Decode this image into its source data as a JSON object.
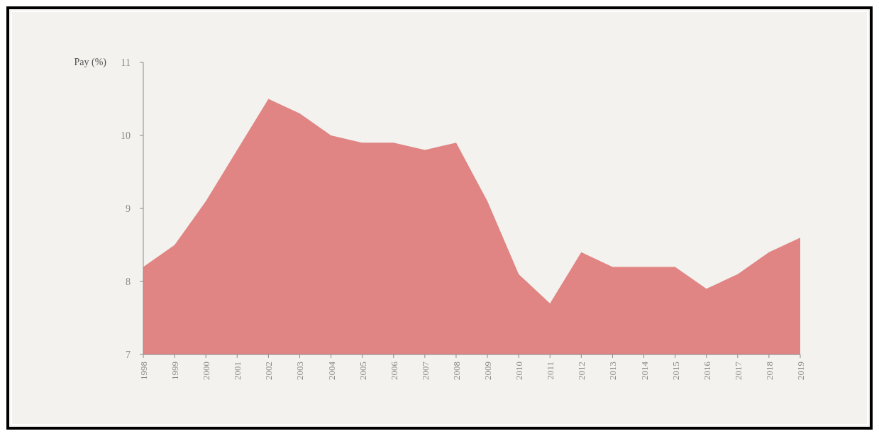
{
  "chart_data": {
    "type": "area",
    "ylabel": "Pay (%)",
    "categories": [
      "1998",
      "1999",
      "2000",
      "2001",
      "2002",
      "2003",
      "2004",
      "2005",
      "2006",
      "2007",
      "2008",
      "2009",
      "2010",
      "2011",
      "2012",
      "2013",
      "2014",
      "2015",
      "2016",
      "2017",
      "2018",
      "2019"
    ],
    "series": [
      {
        "color": "#e08584",
        "values": [
          8.2,
          8.5,
          9.1,
          9.8,
          10.5,
          10.3,
          10.0,
          9.9,
          9.9,
          9.8,
          9.9,
          9.1,
          8.1,
          7.7,
          8.4,
          8.2,
          8.2,
          8.2,
          7.9,
          8.1,
          8.4,
          8.6
        ]
      }
    ],
    "ylim": [
      7,
      11
    ],
    "yticks": [
      7,
      8,
      9,
      10,
      11
    ]
  }
}
